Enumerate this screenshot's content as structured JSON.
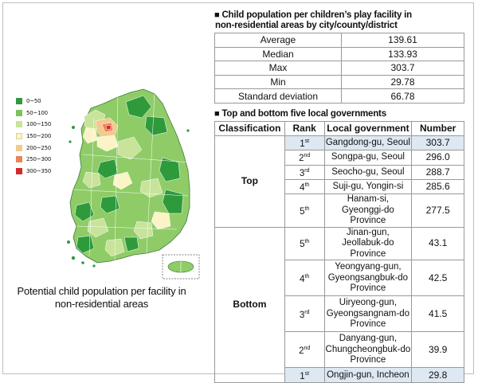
{
  "legend": {
    "items": [
      {
        "label": "0~50",
        "color": "#2e9a3c"
      },
      {
        "label": "50~100",
        "color": "#7cc35a"
      },
      {
        "label": "100~150",
        "color": "#c8e39a"
      },
      {
        "label": "150~200",
        "color": "#fbf4c6"
      },
      {
        "label": "200~250",
        "color": "#f3c98c"
      },
      {
        "label": "250~300",
        "color": "#e8845a"
      },
      {
        "label": "300~350",
        "color": "#d42a2a"
      }
    ]
  },
  "map": {
    "caption_line1": "Potential child population per facility in",
    "caption_line2": "non-residential areas"
  },
  "stats_section": {
    "marker": "■",
    "title_line1": "Child population per children’s play facility in",
    "title_line2": "non-residential areas by city/county/district",
    "rows": [
      {
        "label": "Average",
        "value": "139.61"
      },
      {
        "label": "Median",
        "value": "133.93"
      },
      {
        "label": "Max",
        "value": "303.7"
      },
      {
        "label": "Min",
        "value": "29.78"
      },
      {
        "label": "Standard deviation",
        "value": "66.78"
      }
    ]
  },
  "rank_section": {
    "marker": "■",
    "title": "Top and bottom five local governments",
    "headers": {
      "classification": "Classification",
      "rank": "Rank",
      "gov": "Local government",
      "number": "Number"
    },
    "top_label": "Top",
    "bottom_label": "Bottom",
    "top": [
      {
        "rank": "1",
        "suffix": "st",
        "gov_line1": "Gangdong-gu, Seoul",
        "gov_line2": "",
        "gov_line3": "",
        "number": "303.7"
      },
      {
        "rank": "2",
        "suffix": "nd",
        "gov_line1": "Songpa-gu, Seoul",
        "gov_line2": "",
        "gov_line3": "",
        "number": "296.0"
      },
      {
        "rank": "3",
        "suffix": "rd",
        "gov_line1": "Seocho-gu, Seoul",
        "gov_line2": "",
        "gov_line3": "",
        "number": "288.7"
      },
      {
        "rank": "4",
        "suffix": "th",
        "gov_line1": "Suji-gu, Yongin-si",
        "gov_line2": "",
        "gov_line3": "",
        "number": "285.6"
      },
      {
        "rank": "5",
        "suffix": "th",
        "gov_line1": "Hanam-si,",
        "gov_line2": "Gyeonggi-do Province",
        "gov_line3": "",
        "number": "277.5"
      }
    ],
    "bottom": [
      {
        "rank": "5",
        "suffix": "th",
        "gov_line1": "Jinan-gun,",
        "gov_line2": "Jeollabuk-do Province",
        "gov_line3": "",
        "number": "43.1"
      },
      {
        "rank": "4",
        "suffix": "th",
        "gov_line1": "Yeongyang-gun,",
        "gov_line2": "Gyeongsangbuk-do",
        "gov_line3": "Province",
        "number": "42.5"
      },
      {
        "rank": "3",
        "suffix": "rd",
        "gov_line1": "Uiryeong-gun,",
        "gov_line2": "Gyeongsangnam-do",
        "gov_line3": "Province",
        "number": "41.5"
      },
      {
        "rank": "2",
        "suffix": "nd",
        "gov_line1": "Danyang-gun,",
        "gov_line2": "Chungcheongbuk-do",
        "gov_line3": "Province",
        "number": "39.9"
      },
      {
        "rank": "1",
        "suffix": "st",
        "gov_line1": "Ongjin-gun, Incheon",
        "gov_line2": "",
        "gov_line3": "",
        "number": "29.8"
      }
    ]
  }
}
